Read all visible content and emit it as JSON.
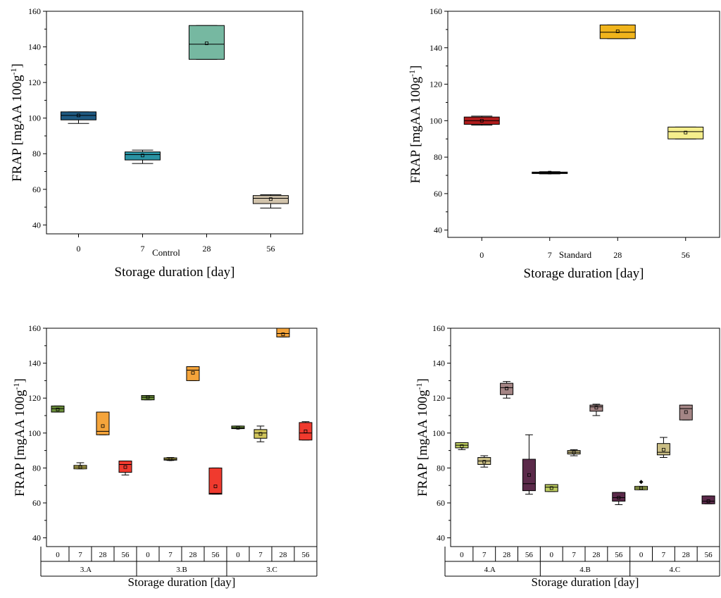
{
  "chart_data": [
    {
      "type": "box",
      "caption": "Control",
      "xlabel": "Storage duration [day]",
      "ylabel": "FRAP [mgAA 100g-1]",
      "ylim": [
        35,
        160
      ],
      "yticks": [
        40,
        60,
        80,
        100,
        120,
        140,
        160
      ],
      "groups": [],
      "boxes": [
        {
          "label": "0",
          "color": "#1f5a82",
          "min": 97,
          "q1": 99,
          "median": 101.5,
          "q3": 103.5,
          "max": 103.5,
          "mean": 101.5
        },
        {
          "label": "7",
          "color": "#2a93a3",
          "min": 74.5,
          "q1": 76.5,
          "median": 79.5,
          "q3": 81,
          "max": 82,
          "mean": 79
        },
        {
          "label": "28",
          "color": "#76b8a1",
          "min": 133,
          "q1": 133,
          "median": 141.5,
          "q3": 152,
          "max": 152,
          "mean": 142
        },
        {
          "label": "56",
          "color": "#d1c3ab",
          "min": 49.5,
          "q1": 52,
          "median": 55,
          "q3": 56.5,
          "max": 57,
          "mean": 54.5
        }
      ]
    },
    {
      "type": "box",
      "caption": "Standard",
      "xlabel": "Storage duration [day]",
      "ylabel": "FRAP [mgAA 100g-1]",
      "ylim": [
        36,
        160
      ],
      "yticks": [
        40,
        60,
        80,
        100,
        120,
        140,
        160
      ],
      "groups": [],
      "boxes": [
        {
          "label": "0",
          "color": "#b01c1c",
          "min": 97.5,
          "q1": 98,
          "median": 100,
          "q3": 102,
          "max": 102.5,
          "mean": 100
        },
        {
          "label": "7",
          "color": "#1a1a1a",
          "min": 70.8,
          "q1": 71,
          "median": 71.5,
          "q3": 71.8,
          "max": 72,
          "mean": 71.5
        },
        {
          "label": "28",
          "color": "#f0b41c",
          "min": 145,
          "q1": 145,
          "median": 148.5,
          "q3": 152.5,
          "max": 152.5,
          "mean": 149
        },
        {
          "label": "56",
          "color": "#f5ee8c",
          "min": 90,
          "q1": 90,
          "median": 94,
          "q3": 96.5,
          "max": 96.5,
          "mean": 93.5
        }
      ]
    },
    {
      "type": "box",
      "caption": "",
      "xlabel": "Storage duration [day]",
      "ylabel": "FRAP [mgAA 100g-1]",
      "ylim": [
        35,
        160
      ],
      "yticks": [
        40,
        60,
        80,
        100,
        120,
        140,
        160
      ],
      "groups": [
        "3.A",
        "3.B",
        "3.C"
      ],
      "boxes": [
        {
          "label": "0",
          "group": 0,
          "color": "#6b8f3a",
          "min": 112,
          "q1": 112,
          "median": 114,
          "q3": 115.5,
          "max": 115.5,
          "mean": 113.5
        },
        {
          "label": "7",
          "group": 0,
          "color": "#d2c65c",
          "min": 79.5,
          "q1": 79.5,
          "median": 80.5,
          "q3": 81.5,
          "max": 83,
          "mean": 80.5
        },
        {
          "label": "28",
          "group": 0,
          "color": "#f4a43b",
          "min": 99,
          "q1": 99,
          "median": 101,
          "q3": 112,
          "max": 112,
          "mean": 104
        },
        {
          "label": "56",
          "group": 0,
          "color": "#f03a2e",
          "min": 76,
          "q1": 77.5,
          "median": 82,
          "q3": 84,
          "max": 84,
          "mean": 80.5
        },
        {
          "label": "0",
          "group": 1,
          "color": "#6b8f3a",
          "min": 119,
          "q1": 119,
          "median": 120.5,
          "q3": 121.5,
          "max": 121.5,
          "mean": 120.5
        },
        {
          "label": "7",
          "group": 1,
          "color": "#d2c65c",
          "min": 84.3,
          "q1": 84.5,
          "median": 85,
          "q3": 85.8,
          "max": 86,
          "mean": 85
        },
        {
          "label": "28",
          "group": 1,
          "color": "#f4a43b",
          "min": 130,
          "q1": 130,
          "median": 136,
          "q3": 138,
          "max": 138,
          "mean": 134.5
        },
        {
          "label": "56",
          "group": 1,
          "color": "#f03a2e",
          "min": 65,
          "q1": 65,
          "median": 65.5,
          "q3": 80,
          "max": 80,
          "mean": 69.5
        },
        {
          "label": "0",
          "group": 2,
          "color": "#6b8f3a",
          "min": 102.5,
          "q1": 102.5,
          "median": 103,
          "q3": 104,
          "max": 104,
          "mean": 103
        },
        {
          "label": "7",
          "group": 2,
          "color": "#d2c65c",
          "min": 95,
          "q1": 97,
          "median": 100,
          "q3": 102,
          "max": 104,
          "mean": 99.5
        },
        {
          "label": "28",
          "group": 2,
          "color": "#f4a43b",
          "min": 155,
          "q1": 155,
          "median": 157,
          "q3": 160,
          "max": 160,
          "mean": 156.5
        },
        {
          "label": "56",
          "group": 2,
          "color": "#f03a2e",
          "min": 96,
          "q1": 96,
          "median": 100,
          "q3": 106,
          "max": 106.5,
          "mean": 101
        }
      ]
    },
    {
      "type": "box",
      "caption": "",
      "xlabel": "Storage duration [day]",
      "ylabel": "FRAP [mgAA 100g-1]",
      "ylim": [
        35,
        160
      ],
      "yticks": [
        40,
        60,
        80,
        100,
        120,
        140,
        160
      ],
      "groups": [
        "4.A",
        "4.B",
        "4.C"
      ],
      "boxes": [
        {
          "label": "0",
          "group": 0,
          "color": "#bccc60",
          "min": 90.5,
          "q1": 91.5,
          "median": 93,
          "q3": 94.5,
          "max": 94.5,
          "mean": 92.5
        },
        {
          "label": "7",
          "group": 0,
          "color": "#c9bd84",
          "min": 80.5,
          "q1": 82,
          "median": 84,
          "q3": 86,
          "max": 87,
          "mean": 83.5
        },
        {
          "label": "28",
          "group": 0,
          "color": "#a48585",
          "min": 120,
          "q1": 122,
          "median": 126,
          "q3": 128.5,
          "max": 129.5,
          "mean": 125.5
        },
        {
          "label": "56",
          "group": 0,
          "color": "#5b2a4a",
          "min": 65,
          "q1": 67,
          "median": 71,
          "q3": 85,
          "max": 99,
          "mean": 76
        },
        {
          "label": "0",
          "group": 1,
          "color": "#bccc60",
          "min": 66.5,
          "q1": 66.5,
          "median": 69,
          "q3": 70.5,
          "max": 70.5,
          "mean": 68.5
        },
        {
          "label": "7",
          "group": 1,
          "color": "#c9bd84",
          "min": 87,
          "q1": 88,
          "median": 89,
          "q3": 90,
          "max": 90.5,
          "mean": 89
        },
        {
          "label": "28",
          "group": 1,
          "color": "#a48585",
          "min": 110,
          "q1": 112.5,
          "median": 115,
          "q3": 116,
          "max": 116.5,
          "mean": 114.5
        },
        {
          "label": "56",
          "group": 1,
          "color": "#5b2a4a",
          "min": 59,
          "q1": 61,
          "median": 63,
          "q3": 66,
          "max": 66,
          "mean": 63
        },
        {
          "label": "0",
          "group": 2,
          "color": "#bccc60",
          "min": 67.5,
          "q1": 67.5,
          "median": 68.5,
          "q3": 69.5,
          "max": 69.5,
          "mean": 68.5,
          "outlier": 72
        },
        {
          "label": "7",
          "group": 2,
          "color": "#c9bd84",
          "min": 86,
          "q1": 87.5,
          "median": 89,
          "q3": 94,
          "max": 97.5,
          "mean": 90.5
        },
        {
          "label": "28",
          "group": 2,
          "color": "#a48585",
          "min": 107.5,
          "q1": 107.5,
          "median": 114,
          "q3": 116,
          "max": 116,
          "mean": 112
        },
        {
          "label": "56",
          "group": 2,
          "color": "#5b2a4a",
          "min": 59.5,
          "q1": 59.5,
          "median": 61,
          "q3": 64,
          "max": 64,
          "mean": 61
        }
      ]
    }
  ]
}
